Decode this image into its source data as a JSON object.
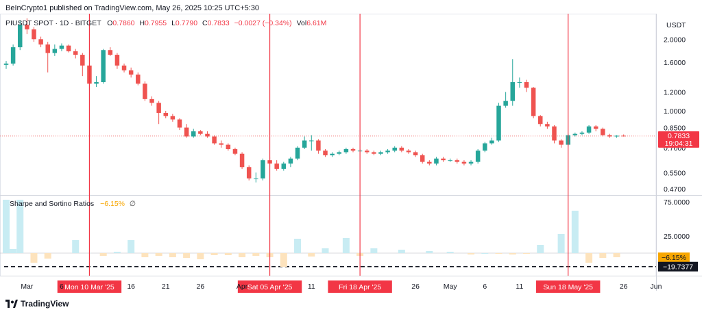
{
  "publisher": "BeInCrypto1 published on TradingView.com, May 26, 2025 10:25 UTC+5:30",
  "symbol": {
    "name": "PIUSDT SPOT · 1D · BITGET",
    "open_label": "O",
    "open": "0.7860",
    "high_label": "H",
    "high": "0.7955",
    "low_label": "L",
    "low": "0.7790",
    "close_label": "C",
    "close": "0.7833",
    "change": "−0.0027 (−0.34%)",
    "vol_label": "Vol",
    "vol": "6.61M"
  },
  "currency": "USDT",
  "price_axis_ticks": [
    "2.0000",
    "1.6000",
    "1.2000",
    "1.0000",
    "0.8500",
    "0.7000",
    "0.5500",
    "0.4700"
  ],
  "last_price_badge": {
    "price": "0.7833",
    "countdown": "19:04:31"
  },
  "indicator": {
    "name": "Sharpe and Sortino Ratios",
    "value": "−6.15%",
    "symbol": "∅",
    "axis_ticks": [
      "75.0000",
      "25.0000"
    ],
    "badge_value": "−6.15%",
    "dashed_badge_value": "−19.7377"
  },
  "time_axis_labels": [
    "Mar",
    "6",
    "16",
    "21",
    "26",
    "Apr",
    "11",
    "26",
    "May",
    "6",
    "11",
    "26",
    "Jun"
  ],
  "highlight_labels": [
    "Mon 10 Mar '25",
    "Sat 05 Apr '25",
    "Fri 18 Apr '25",
    "Sun 18 May '25"
  ],
  "footer": "TradingView",
  "colors": {
    "up": "#26a69a",
    "down": "#ef5350",
    "marker": "#f23645",
    "bar_pos": "#c8ecf3",
    "bar_neg": "#fde3bd",
    "orange": "#f7a600"
  },
  "chart_data": [
    {
      "type": "candlestick",
      "title": "PIUSDT SPOT · 1D · BITGET",
      "ylabel": "USDT",
      "yscale": "log",
      "ylim": [
        0.44,
        2.5
      ],
      "x": [
        "Feb 26",
        "Feb 27",
        "Feb 28",
        "Mar 1",
        "Mar 2",
        "Mar 3",
        "Mar 4",
        "Mar 5",
        "Mar 6",
        "Mar 7",
        "Mar 8",
        "Mar 9",
        "Mar 10",
        "Mar 11",
        "Mar 12",
        "Mar 13",
        "Mar 14",
        "Mar 15",
        "Mar 16",
        "Mar 17",
        "Mar 18",
        "Mar 19",
        "Mar 20",
        "Mar 21",
        "Mar 22",
        "Mar 23",
        "Mar 24",
        "Mar 25",
        "Mar 26",
        "Mar 27",
        "Mar 28",
        "Mar 29",
        "Mar 30",
        "Mar 31",
        "Apr 1",
        "Apr 2",
        "Apr 3",
        "Apr 4",
        "Apr 5",
        "Apr 6",
        "Apr 7",
        "Apr 8",
        "Apr 9",
        "Apr 10",
        "Apr 11",
        "Apr 12",
        "Apr 13",
        "Apr 14",
        "Apr 15",
        "Apr 16",
        "Apr 17",
        "Apr 18",
        "Apr 19",
        "Apr 20",
        "Apr 21",
        "Apr 22",
        "Apr 23",
        "Apr 24",
        "Apr 25",
        "Apr 26",
        "Apr 27",
        "Apr 28",
        "Apr 29",
        "Apr 30",
        "May 1",
        "May 2",
        "May 3",
        "May 4",
        "May 5",
        "May 6",
        "May 7",
        "May 8",
        "May 9",
        "May 10",
        "May 11",
        "May 12",
        "May 13",
        "May 14",
        "May 15",
        "May 16",
        "May 17",
        "May 18",
        "May 19",
        "May 20",
        "May 21",
        "May 22",
        "May 23",
        "May 24",
        "May 25",
        "May 26"
      ],
      "open": [
        1.56,
        1.58,
        1.85,
        2.3,
        2.2,
        2.0,
        1.9,
        1.75,
        1.82,
        1.88,
        1.78,
        1.72,
        1.55,
        1.3,
        1.32,
        1.8,
        1.72,
        1.55,
        1.48,
        1.42,
        1.3,
        1.12,
        1.08,
        0.98,
        0.95,
        0.92,
        0.85,
        0.78,
        0.82,
        0.8,
        0.78,
        0.73,
        0.72,
        0.69,
        0.66,
        0.58,
        0.52,
        0.52,
        0.62,
        0.6,
        0.57,
        0.6,
        0.63,
        0.7,
        0.75,
        0.75,
        0.68,
        0.65,
        0.66,
        0.67,
        0.69,
        0.68,
        0.68,
        0.67,
        0.66,
        0.67,
        0.68,
        0.7,
        0.68,
        0.67,
        0.65,
        0.61,
        0.6,
        0.63,
        0.62,
        0.62,
        0.61,
        0.6,
        0.61,
        0.68,
        0.73,
        0.75,
        1.05,
        1.1,
        1.32,
        1.32,
        1.25,
        0.95,
        0.88,
        0.86,
        0.75,
        0.72,
        0.79,
        0.8,
        0.81,
        0.86,
        0.84,
        0.79,
        0.78,
        0.786
      ],
      "close": [
        1.58,
        1.85,
        2.3,
        2.2,
        2.0,
        1.9,
        1.75,
        1.82,
        1.88,
        1.78,
        1.72,
        1.55,
        1.3,
        1.32,
        1.8,
        1.72,
        1.55,
        1.48,
        1.42,
        1.3,
        1.12,
        1.08,
        0.98,
        0.95,
        0.92,
        0.85,
        0.78,
        0.82,
        0.8,
        0.78,
        0.73,
        0.72,
        0.69,
        0.66,
        0.58,
        0.52,
        0.52,
        0.62,
        0.6,
        0.57,
        0.6,
        0.63,
        0.7,
        0.75,
        0.75,
        0.68,
        0.65,
        0.66,
        0.67,
        0.69,
        0.68,
        0.68,
        0.67,
        0.66,
        0.67,
        0.68,
        0.7,
        0.68,
        0.67,
        0.65,
        0.61,
        0.6,
        0.63,
        0.62,
        0.62,
        0.61,
        0.6,
        0.61,
        0.68,
        0.73,
        0.75,
        1.05,
        1.1,
        1.32,
        1.32,
        1.25,
        0.95,
        0.88,
        0.86,
        0.75,
        0.72,
        0.79,
        0.8,
        0.81,
        0.86,
        0.84,
        0.79,
        0.78,
        0.786,
        0.7833
      ],
      "high": [
        1.62,
        1.9,
        2.4,
        2.45,
        2.25,
        2.05,
        1.95,
        1.9,
        1.92,
        1.9,
        1.82,
        1.75,
        1.58,
        1.4,
        1.82,
        1.85,
        1.75,
        1.58,
        1.52,
        1.45,
        1.33,
        1.15,
        1.1,
        1.0,
        0.97,
        0.93,
        0.88,
        0.84,
        0.83,
        0.82,
        0.79,
        0.75,
        0.73,
        0.7,
        0.67,
        0.59,
        0.55,
        0.63,
        0.64,
        0.62,
        0.61,
        0.64,
        0.71,
        0.78,
        0.79,
        0.76,
        0.69,
        0.67,
        0.68,
        0.7,
        0.7,
        0.69,
        0.69,
        0.68,
        0.68,
        0.69,
        0.71,
        0.71,
        0.69,
        0.68,
        0.66,
        0.62,
        0.64,
        0.64,
        0.63,
        0.63,
        0.62,
        0.62,
        0.69,
        0.74,
        0.77,
        1.08,
        1.2,
        1.65,
        1.38,
        1.35,
        1.26,
        0.96,
        0.9,
        0.87,
        0.76,
        0.8,
        0.81,
        0.82,
        0.87,
        0.87,
        0.85,
        0.8,
        0.79,
        0.7955
      ],
      "low": [
        1.5,
        1.55,
        1.8,
        2.1,
        1.95,
        1.85,
        1.45,
        1.7,
        1.78,
        1.76,
        1.66,
        1.4,
        1.22,
        1.26,
        1.3,
        1.7,
        1.5,
        1.45,
        1.38,
        1.28,
        1.1,
        1.05,
        0.88,
        0.93,
        0.9,
        0.83,
        0.77,
        0.77,
        0.79,
        0.77,
        0.72,
        0.7,
        0.68,
        0.65,
        0.57,
        0.51,
        0.5,
        0.51,
        0.58,
        0.56,
        0.56,
        0.58,
        0.62,
        0.69,
        0.68,
        0.66,
        0.64,
        0.64,
        0.65,
        0.66,
        0.67,
        0.67,
        0.66,
        0.65,
        0.65,
        0.66,
        0.67,
        0.67,
        0.66,
        0.64,
        0.6,
        0.59,
        0.59,
        0.61,
        0.61,
        0.6,
        0.59,
        0.59,
        0.6,
        0.67,
        0.72,
        0.74,
        1.03,
        1.05,
        1.25,
        1.2,
        0.93,
        0.86,
        0.84,
        0.73,
        0.7,
        0.71,
        0.78,
        0.79,
        0.8,
        0.82,
        0.78,
        0.77,
        0.77,
        0.779
      ]
    },
    {
      "type": "bar",
      "title": "Sharpe and Sortino Ratios",
      "ylim": [
        -30,
        80
      ],
      "x": [
        "Feb 26",
        "Feb 27",
        "Feb 28",
        "Mar 2",
        "Mar 4",
        "Mar 8",
        "Mar 12",
        "Mar 14",
        "Mar 16",
        "Mar 18",
        "Mar 20",
        "Mar 22",
        "Mar 24",
        "Mar 26",
        "Mar 28",
        "Mar 30",
        "Apr 1",
        "Apr 3",
        "Apr 5",
        "Apr 7",
        "Apr 9",
        "Apr 11",
        "Apr 13",
        "Apr 16",
        "Apr 18",
        "Apr 20",
        "Apr 24",
        "Apr 28",
        "May 1",
        "May 4",
        "May 6",
        "May 8",
        "May 10",
        "May 12",
        "May 14",
        "May 17",
        "May 19",
        "May 21",
        "May 23",
        "May 25"
      ],
      "values": [
        78,
        6,
        78,
        -14,
        -8,
        19,
        -4,
        2,
        19,
        -6,
        -4,
        -6,
        -7,
        -9,
        -3,
        -3,
        -6,
        -4,
        -6,
        -20,
        21,
        -5,
        7,
        22,
        -4,
        7,
        5,
        3,
        2,
        -2,
        0,
        -1,
        -2,
        -1,
        12,
        28,
        62,
        -14,
        -7,
        -6
      ]
    }
  ]
}
